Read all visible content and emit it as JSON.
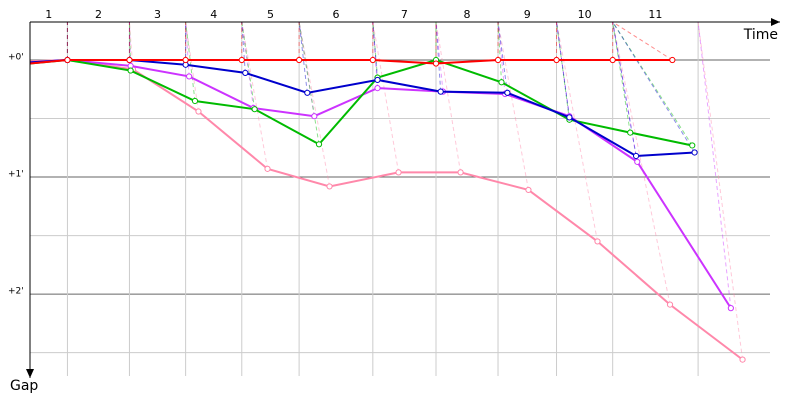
{
  "chart_data": {
    "type": "line",
    "x_label": "Time",
    "y_label": "Gap",
    "categories": [
      "1",
      "2",
      "3",
      "4",
      "5",
      "6",
      "7",
      "8",
      "9",
      "10",
      "11"
    ],
    "lap_boundaries": [
      0.32,
      0.85,
      1.33,
      1.81,
      2.3,
      2.93,
      3.47,
      4.0,
      4.5,
      4.98,
      5.71
    ],
    "xlim": [
      0,
      6.41
    ],
    "ylim": [
      -0.325,
      2.7
    ],
    "yticks": [
      {
        "value": 0,
        "label": "+0'"
      },
      {
        "value": 1,
        "label": "+1'"
      },
      {
        "value": 2,
        "label": "+2'"
      }
    ],
    "minor_yticks": [
      0.5,
      1.5,
      2.5
    ],
    "grid": true,
    "series": [
      {
        "color": "#ff88aa",
        "x": [
          0,
          0.32,
          0.88,
          1.44,
          2.03,
          2.56,
          3.15,
          3.68,
          4.26,
          4.85,
          5.47,
          6.09
        ],
        "values": [
          0.01,
          0,
          0.08,
          0.44,
          0.93,
          1.08,
          0.96,
          0.96,
          1.11,
          1.55,
          2.09,
          2.56
        ]
      },
      {
        "color": "#cc33ff",
        "x": [
          0,
          0.32,
          0.86,
          1.36,
          1.91,
          2.43,
          2.97,
          3.53,
          4.06,
          4.61,
          5.19,
          5.99
        ],
        "values": [
          0.02,
          0,
          0.05,
          0.14,
          0.41,
          0.48,
          0.24,
          0.27,
          0.29,
          0.48,
          0.87,
          2.12
        ]
      },
      {
        "color": "#00bb00",
        "x": [
          0,
          0.32,
          0.86,
          1.41,
          1.92,
          2.47,
          2.97,
          3.47,
          4.03,
          4.61,
          5.13,
          5.66
        ],
        "values": [
          0.03,
          0,
          0.09,
          0.35,
          0.42,
          0.72,
          0.15,
          0,
          0.19,
          0.51,
          0.62,
          0.73
        ]
      },
      {
        "color": "#0000cc",
        "x": [
          0,
          0.32,
          0.85,
          1.33,
          1.84,
          2.37,
          2.97,
          3.51,
          4.08,
          4.61,
          5.18,
          5.68
        ],
        "values": [
          0.02,
          0,
          0,
          0.04,
          0.11,
          0.28,
          0.17,
          0.27,
          0.28,
          0.49,
          0.82,
          0.79
        ]
      },
      {
        "color": "#ff0000",
        "x": [
          0,
          0.32,
          0.85,
          1.33,
          1.81,
          2.3,
          2.93,
          3.47,
          4.0,
          4.5,
          4.98,
          5.49
        ],
        "values": [
          0.03,
          0,
          0,
          0,
          0,
          0,
          0,
          0.03,
          0,
          0,
          0,
          0
        ]
      }
    ]
  }
}
